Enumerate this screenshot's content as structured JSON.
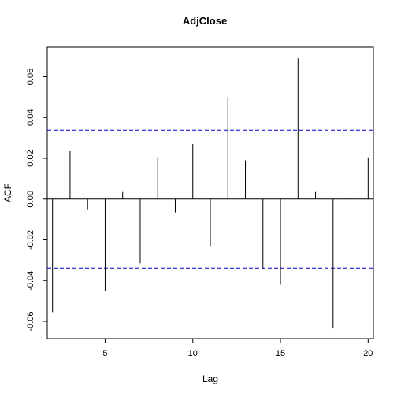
{
  "chart_data": {
    "type": "bar",
    "title": "AdjClose",
    "xlabel": "Lag",
    "ylabel": "ACF",
    "x": [
      2,
      3,
      4,
      5,
      6,
      7,
      8,
      9,
      10,
      11,
      12,
      13,
      14,
      15,
      16,
      17,
      18,
      19,
      20
    ],
    "values": [
      -0.0555,
      0.0235,
      -0.005,
      -0.045,
      0.0035,
      -0.0315,
      0.0205,
      -0.0065,
      0.027,
      -0.023,
      0.05,
      0.019,
      -0.034,
      -0.042,
      0.069,
      0.0035,
      -0.0635,
      0.0005,
      0.0205
    ],
    "xlim": [
      1.7,
      20.3
    ],
    "ylim": [
      -0.0685,
      0.0745
    ],
    "xticks": [
      5,
      10,
      15,
      20
    ],
    "xtick_labels": [
      "5",
      "10",
      "15",
      "20"
    ],
    "yticks": [
      -0.06,
      -0.04,
      -0.02,
      0.0,
      0.02,
      0.04,
      0.06
    ],
    "ytick_labels": [
      "-0.06",
      "-0.04",
      "-0.02",
      "0.00",
      "0.02",
      "0.04",
      "0.06"
    ],
    "confidence_bounds": [
      0.0338,
      -0.0338
    ],
    "confidence_color": "#0000cc",
    "bar_color": "#000000",
    "zero_line": true,
    "grid": false
  }
}
